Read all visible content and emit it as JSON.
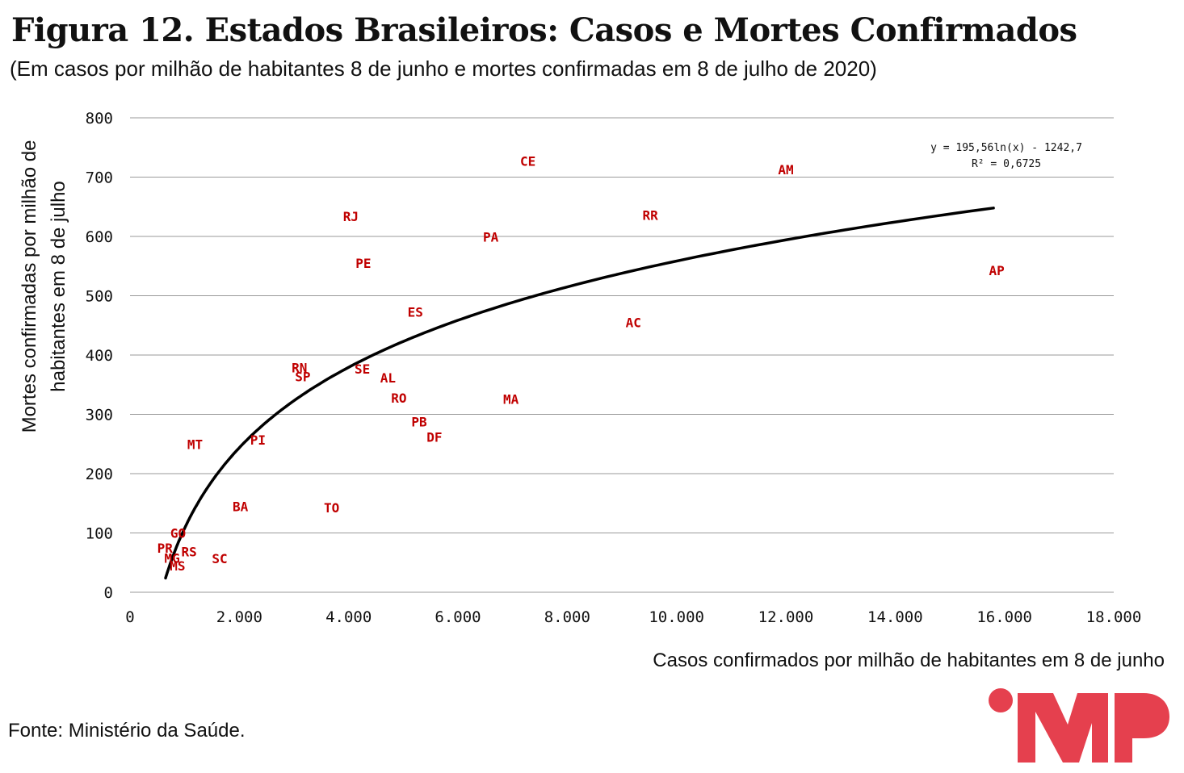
{
  "title": "Figura 12. Estados Brasileiros: Casos e Mortes Confirmados",
  "subtitle": "(Em casos por milhão de habitantes 8 de junho e mortes confirmadas em 8 de julho de 2020)",
  "source": "Fonte: Ministério da Saúde.",
  "colors": {
    "points": "#c00000",
    "trend": "#000000",
    "grid": "#9a9a9a",
    "logo": "#e5404e"
  },
  "chart_data": {
    "type": "scatter",
    "title": "Figura 12. Estados Brasileiros: Casos e Mortes Confirmados",
    "subtitle": "(Em casos por milhão de habitantes 8 de junho e mortes confirmadas em 8 de julho de 2020)",
    "xlabel": "Casos confirmados por milhão de habitantes em 8 de junho",
    "ylabel_lines": [
      "Mortes confirmadas por milhão de",
      "habitantes em 8 de julho"
    ],
    "xlim": [
      0,
      18000
    ],
    "ylim": [
      0,
      800
    ],
    "x_ticks": [
      0,
      2000,
      4000,
      6000,
      8000,
      10000,
      12000,
      14000,
      16000,
      18000
    ],
    "x_tick_labels": [
      "0",
      "2.000",
      "4.000",
      "6.000",
      "8.000",
      "10.000",
      "12.000",
      "14.000",
      "16.000",
      "18.000"
    ],
    "y_ticks": [
      0,
      100,
      200,
      300,
      400,
      500,
      600,
      700,
      800
    ],
    "y_tick_labels": [
      "0",
      "100",
      "200",
      "300",
      "400",
      "500",
      "600",
      "700",
      "800"
    ],
    "grid": "horizontal",
    "points": [
      {
        "label": "CE",
        "x": 7280,
        "y": 727
      },
      {
        "label": "AM",
        "x": 12000,
        "y": 713
      },
      {
        "label": "RJ",
        "x": 4040,
        "y": 634
      },
      {
        "label": "RR",
        "x": 9520,
        "y": 636
      },
      {
        "label": "PA",
        "x": 6600,
        "y": 599
      },
      {
        "label": "PE",
        "x": 4270,
        "y": 555
      },
      {
        "label": "AP",
        "x": 15860,
        "y": 543
      },
      {
        "label": "ES",
        "x": 5220,
        "y": 473
      },
      {
        "label": "AC",
        "x": 9210,
        "y": 455
      },
      {
        "label": "RN",
        "x": 3100,
        "y": 379
      },
      {
        "label": "SE",
        "x": 4250,
        "y": 377
      },
      {
        "label": "SP",
        "x": 3160,
        "y": 364
      },
      {
        "label": "AL",
        "x": 4720,
        "y": 362
      },
      {
        "label": "RO",
        "x": 4920,
        "y": 328
      },
      {
        "label": "MA",
        "x": 6970,
        "y": 326
      },
      {
        "label": "PB",
        "x": 5290,
        "y": 288
      },
      {
        "label": "DF",
        "x": 5570,
        "y": 262
      },
      {
        "label": "PI",
        "x": 2340,
        "y": 257
      },
      {
        "label": "MT",
        "x": 1190,
        "y": 250
      },
      {
        "label": "BA",
        "x": 2020,
        "y": 145
      },
      {
        "label": "TO",
        "x": 3690,
        "y": 143
      },
      {
        "label": "GO",
        "x": 880,
        "y": 100
      },
      {
        "label": "PR",
        "x": 640,
        "y": 75
      },
      {
        "label": "RS",
        "x": 1080,
        "y": 69
      },
      {
        "label": "SC",
        "x": 1640,
        "y": 57
      },
      {
        "label": "MG",
        "x": 770,
        "y": 58
      },
      {
        "label": "MS",
        "x": 870,
        "y": 45
      }
    ],
    "trendline": {
      "type": "log",
      "a": 195.56,
      "b": -1242.7,
      "x_range": [
        650,
        15800
      ],
      "equation": "y = 195,56ln(x) - 1242,7",
      "r2": "R² = 0,6725"
    }
  }
}
